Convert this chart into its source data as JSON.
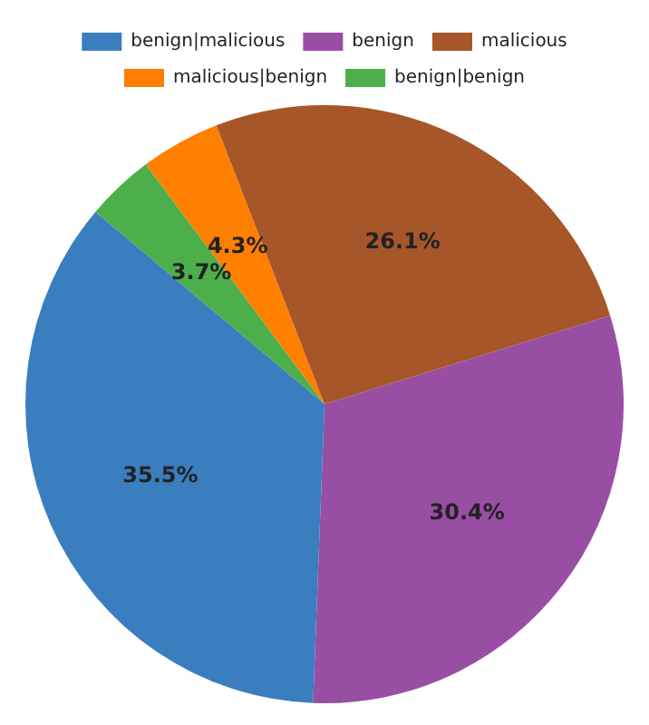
{
  "chart_data": {
    "type": "pie",
    "categories": [
      "benign|malicious",
      "benign",
      "malicious",
      "malicious|benign",
      "benign|benign"
    ],
    "values": [
      35.5,
      30.4,
      26.1,
      4.3,
      3.7
    ],
    "colors": [
      "#3a7ebf",
      "#984ea3",
      "#a65628",
      "#ff7f00",
      "#4daf4a"
    ],
    "value_labels": [
      "35.5%",
      "30.4%",
      "26.1%",
      "4.3%",
      "3.7%"
    ],
    "legend": "top"
  }
}
